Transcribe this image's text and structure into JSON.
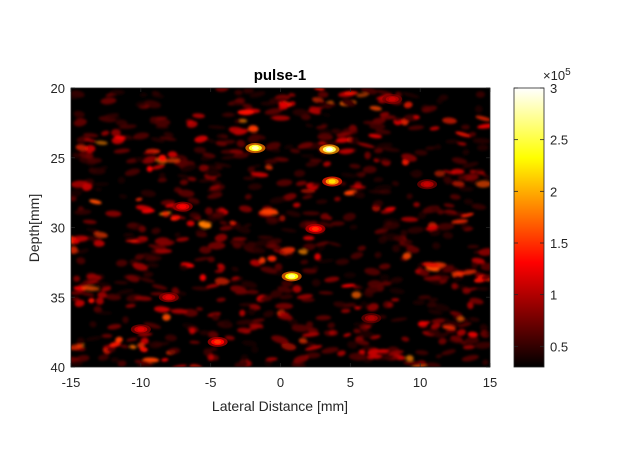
{
  "chart_data": {
    "type": "heatmap",
    "title": "pulse-1",
    "xlabel": "Lateral Distance [mm]",
    "ylabel": "Depth[mm]",
    "xlim": [
      -15,
      15
    ],
    "ylim": [
      20,
      40
    ],
    "y_reversed": true,
    "x_ticks": [
      "-15",
      "-10",
      "-5",
      "0",
      "5",
      "10",
      "15"
    ],
    "y_ticks": [
      "20",
      "25",
      "30",
      "35",
      "40"
    ],
    "colormap": "hot",
    "colorbar": {
      "range": [
        30000,
        300000
      ],
      "ticks": [
        "0.5",
        "1",
        "1.5",
        "2",
        "2.5",
        "3"
      ],
      "multiplier": "×10",
      "exponent": "5"
    },
    "hotspots": [
      {
        "x": 3.5,
        "y": 24.4,
        "v": 300000
      },
      {
        "x": -1.8,
        "y": 24.3,
        "v": 280000
      },
      {
        "x": 0.8,
        "y": 33.5,
        "v": 270000
      },
      {
        "x": 3.7,
        "y": 26.7,
        "v": 220000
      },
      {
        "x": 2.5,
        "y": 30.1,
        "v": 150000
      },
      {
        "x": -7.0,
        "y": 28.5,
        "v": 130000
      },
      {
        "x": -4.5,
        "y": 38.2,
        "v": 150000
      },
      {
        "x": -8.0,
        "y": 35.0,
        "v": 120000
      },
      {
        "x": 8.0,
        "y": 20.8,
        "v": 110000
      },
      {
        "x": 10.5,
        "y": 26.9,
        "v": 110000
      },
      {
        "x": -10.0,
        "y": 37.3,
        "v": 120000
      },
      {
        "x": 6.5,
        "y": 36.5,
        "v": 100000
      }
    ]
  }
}
